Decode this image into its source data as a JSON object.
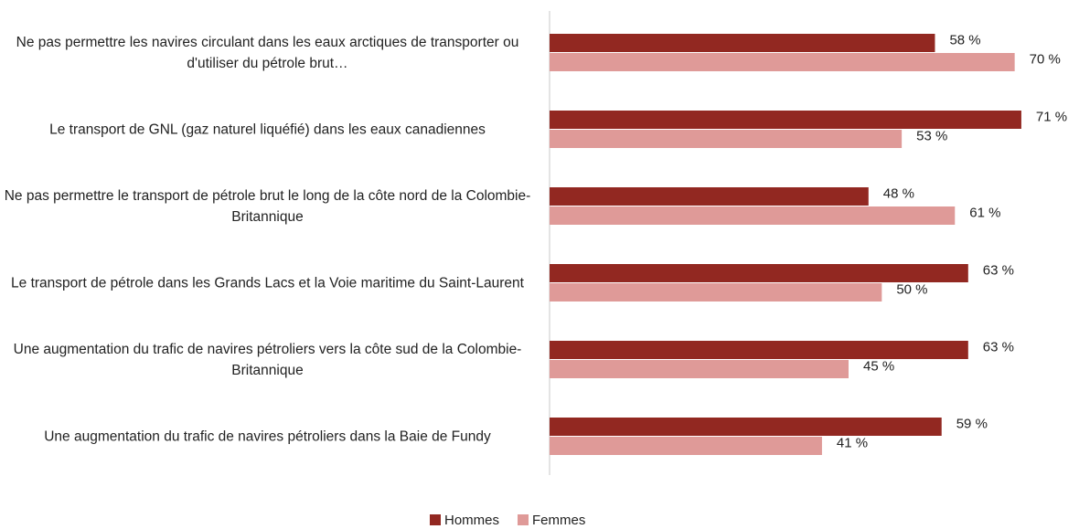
{
  "chart_data": {
    "type": "hbar",
    "categories": [
      "Ne pas permettre les navires circulant dans les eaux arctiques de transporter ou d'utiliser du pétrole brut…",
      "Le transport de GNL (gaz naturel liquéfié) dans les eaux canadiennes",
      "Ne pas permettre le transport de pétrole brut le long de la côte nord de la Colombie-Britannique",
      "Le transport de pétrole dans les Grands Lacs et la Voie maritime du Saint-Laurent",
      "Une augmentation du trafic de navires pétroliers vers la côte sud de la Colombie-Britannique",
      "Une augmentation du trafic de navires pétroliers dans la Baie de Fundy"
    ],
    "series": [
      {
        "name": "Hommes",
        "color": "#922821",
        "values": [
          58,
          71,
          48,
          63,
          63,
          59
        ],
        "value_labels": [
          "58 %",
          "71 %",
          "48 %",
          "63 %",
          "63 %",
          "59 %"
        ]
      },
      {
        "name": "Femmes",
        "color": "#df9a98",
        "values": [
          70,
          53,
          61,
          50,
          45,
          41
        ],
        "value_labels": [
          "70 %",
          "53 %",
          "61 %",
          "50 %",
          "45 %",
          "41 %"
        ]
      }
    ],
    "xlim": [
      0,
      75
    ],
    "legend": "bottom"
  }
}
